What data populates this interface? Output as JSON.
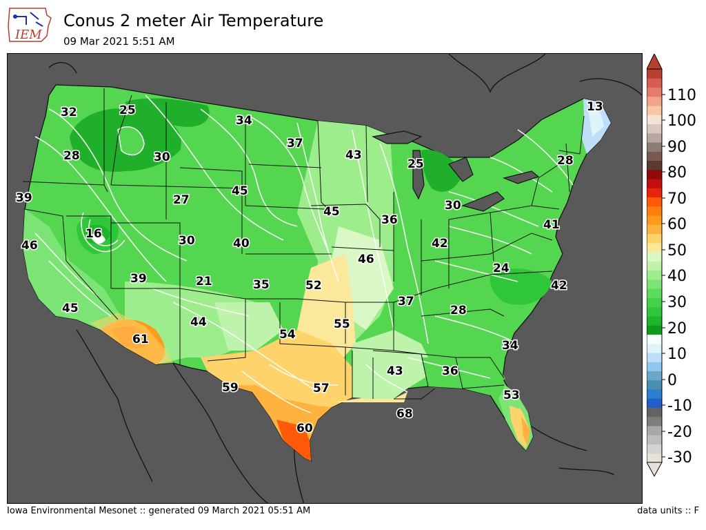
{
  "header": {
    "title": "Conus 2 meter Air Temperature",
    "subtitle": "09 Mar 2021 5:51 AM",
    "logo_text": "IEM"
  },
  "footer": {
    "left": "Iowa Environmental Mesonet :: generated 09 March 2021 05:51 AM",
    "right": "data units :: F"
  },
  "colorbar": {
    "ticks": [
      "110",
      "100",
      "90",
      "80",
      "70",
      "60",
      "50",
      "40",
      "30",
      "20",
      "10",
      "0",
      "-10",
      "-20",
      "-30"
    ],
    "colors": [
      "#e6e2da",
      "#d3d3d3",
      "#bdbdbd",
      "#a9a9a9",
      "#7d7d7d",
      "#636363",
      "#1f5fc7",
      "#2a7fd0",
      "#4a8fb0",
      "#6ba8c8",
      "#8ec8f0",
      "#bde0f8",
      "#def4fb",
      "#f5fdfd",
      "#0f9a1f",
      "#1fb52a",
      "#2fc63a",
      "#44d14a",
      "#5ddb5b",
      "#7ce475",
      "#9ded8d",
      "#bdf3ab",
      "#d9f8c6",
      "#fbe89b",
      "#ffd36b",
      "#ffb23d",
      "#ff9a1a",
      "#ff7f0e",
      "#ff5a0a",
      "#e8240c",
      "#c40d0d",
      "#8f0a0a",
      "#5a3a2e",
      "#7a5a4e",
      "#8d7d74",
      "#b7a7a0",
      "#d8c8c0",
      "#f5e3d3",
      "#f7c7a6",
      "#f3a38a",
      "#e57a6e",
      "#d95b55",
      "#b9402f"
    ]
  },
  "map_labels": [
    {
      "text": "32",
      "value": 32
    },
    {
      "text": "25",
      "value": 25
    },
    {
      "text": "34",
      "value": 34
    },
    {
      "text": "13",
      "value": 13
    },
    {
      "text": "28",
      "value": 28
    },
    {
      "text": "30",
      "value": 30
    },
    {
      "text": "37",
      "value": 37
    },
    {
      "text": "43",
      "value": 43
    },
    {
      "text": "25",
      "value": 25
    },
    {
      "text": "28",
      "value": 28
    },
    {
      "text": "39",
      "value": 39
    },
    {
      "text": "27",
      "value": 27
    },
    {
      "text": "45",
      "value": 45
    },
    {
      "text": "45",
      "value": 45
    },
    {
      "text": "30",
      "value": 30
    },
    {
      "text": "16",
      "value": 16
    },
    {
      "text": "36",
      "value": 36
    },
    {
      "text": "41",
      "value": 41
    },
    {
      "text": "46",
      "value": 46
    },
    {
      "text": "30",
      "value": 30
    },
    {
      "text": "40",
      "value": 40
    },
    {
      "text": "42",
      "value": 42
    },
    {
      "text": "46",
      "value": 46
    },
    {
      "text": "24",
      "value": 24
    },
    {
      "text": "39",
      "value": 39
    },
    {
      "text": "21",
      "value": 21
    },
    {
      "text": "35",
      "value": 35
    },
    {
      "text": "52",
      "value": 52
    },
    {
      "text": "42",
      "value": 42
    },
    {
      "text": "37",
      "value": 37
    },
    {
      "text": "45",
      "value": 45
    },
    {
      "text": "28",
      "value": 28
    },
    {
      "text": "44",
      "value": 44
    },
    {
      "text": "55",
      "value": 55
    },
    {
      "text": "61",
      "value": 61
    },
    {
      "text": "54",
      "value": 54
    },
    {
      "text": "34",
      "value": 34
    },
    {
      "text": "43",
      "value": 43
    },
    {
      "text": "36",
      "value": 36
    },
    {
      "text": "59",
      "value": 59
    },
    {
      "text": "57",
      "value": 57
    },
    {
      "text": "53",
      "value": 53
    },
    {
      "text": "68",
      "value": 68
    },
    {
      "text": "60",
      "value": 60
    }
  ]
}
